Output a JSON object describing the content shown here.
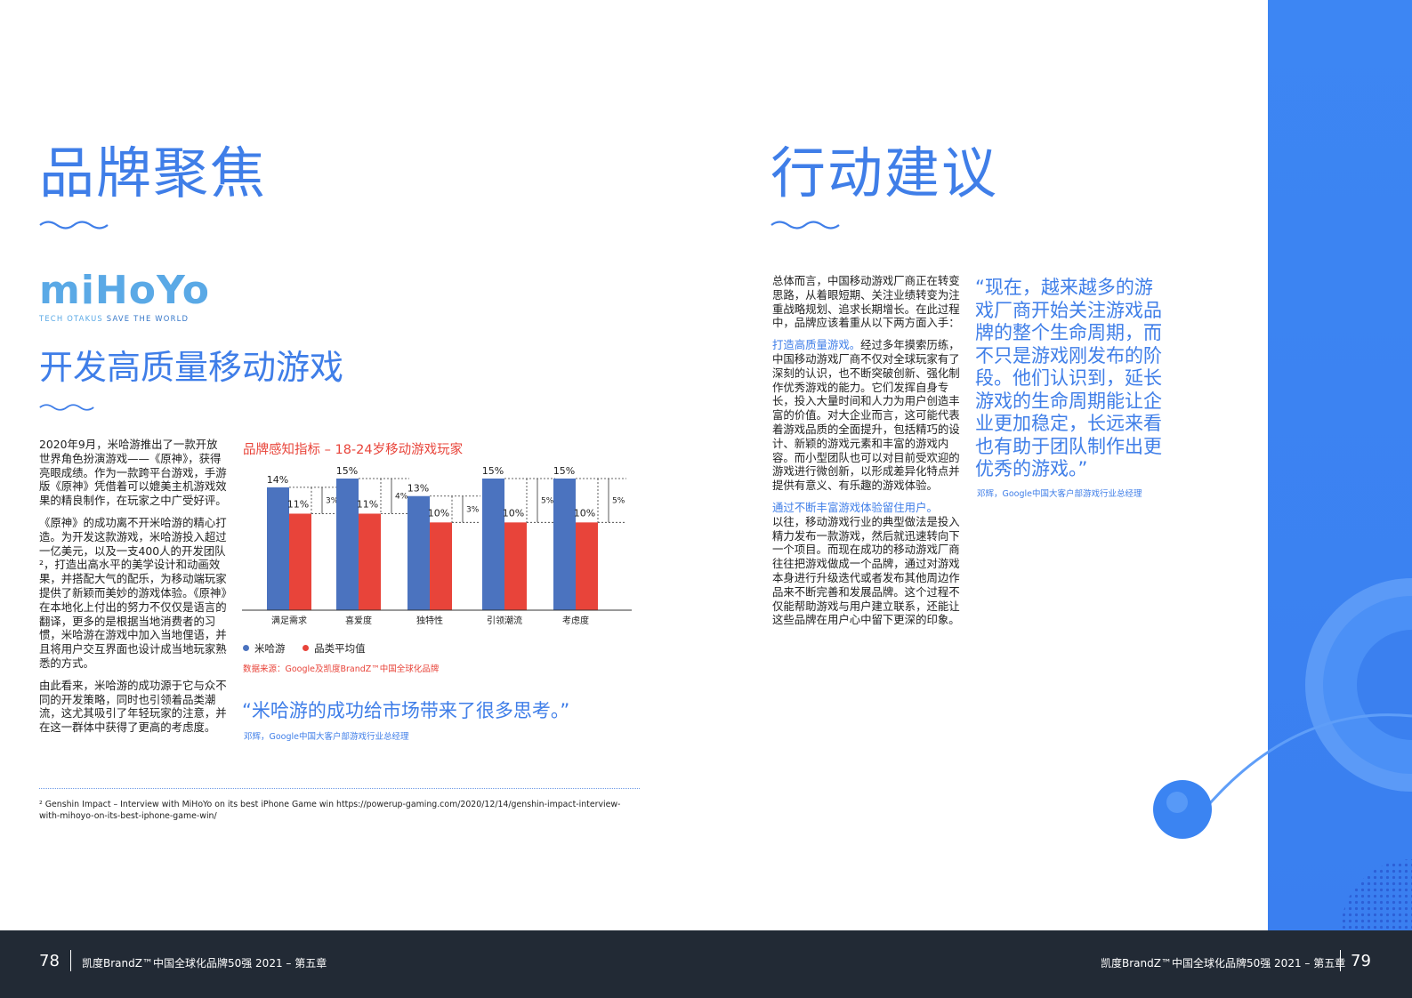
{
  "left": {
    "heading": "品牌聚焦",
    "logo": {
      "wordmark": "miHoYo",
      "tagline_part1": "TECH OTAKUS ",
      "tagline_part2": "SAVE THE WORLD"
    },
    "subheading": "开发高质量移动游戏",
    "paragraphs": [
      "2020年9月，米哈游推出了一款开放世界角色扮演游戏——《原神》，获得亮眼成绩。作为一款跨平台游戏，手游版《原神》凭借着可以媲美主机游戏效果的精良制作，在玩家之中广受好评。",
      "《原神》的成功离不开米哈游的精心打造。为开发这款游戏，米哈游投入超过一亿美元，以及一支400人的开发团队²，打造出高水平的美学设计和动画效果，并搭配大气的配乐，为移动端玩家提供了新颖而美妙的游戏体验。《原神》在本地化上付出的努力不仅仅是语言的翻译，更多的是根据当地消费者的习惯，米哈游在游戏中加入当地俚语，并且将用户交互界面也设计成当地玩家熟悉的方式。",
      "由此看来，米哈游的成功源于它与众不同的开发策略，同时也引领着品类潮流，这尤其吸引了年轻玩家的注意，并在这一群体中获得了更高的考虑度。"
    ],
    "quote": "“米哈游的成功给市场带来了很多思考。”",
    "quote_attribution": "邓辉，Google中国大客户部游戏行业总经理",
    "footnote": "² Genshin Impact – Interview with MiHoYo on its best iPhone Game win https://powerup-gaming.com/2020/12/14/genshin-impact-interview-with-mihoyo-on-its-best-iphone-game-win/"
  },
  "chart_data": {
    "type": "bar",
    "title": "品牌感知指标 – 18-24岁移动游戏玩家",
    "categories": [
      "满足需求",
      "喜爱度",
      "独特性",
      "引领潮流",
      "考虑度"
    ],
    "series": [
      {
        "name": "米哈游",
        "values": [
          14,
          15,
          13,
          15,
          15
        ],
        "labels": [
          "14%",
          "15%",
          "13%",
          "15%",
          "15%"
        ],
        "color": "#4b73bf"
      },
      {
        "name": "品类平均值",
        "values": [
          11,
          11,
          10,
          10,
          10
        ],
        "labels": [
          "11%",
          "11%",
          "10%",
          "10%",
          "10%"
        ],
        "color": "#e8443a"
      }
    ],
    "differences": [
      "3%",
      "4%",
      "3%",
      "5%",
      "5%"
    ],
    "ylim": [
      0,
      15
    ],
    "legend": "bottom-left",
    "grid": false,
    "source": "数据来源：Google及凯度BrandZ™中国全球化品牌"
  },
  "right": {
    "heading": "行动建议",
    "intro": "总体而言，中国移动游戏厂商正在转变思路，从着眼短期、关注业绩转变为注重战略规划、追求长期增长。在此过程中，品牌应该着重从以下两方面入手：",
    "point1_title": "打造高质量游戏。",
    "point1_text": "经过多年摸索历练，中国移动游戏厂商不仅对全球玩家有了深刻的认识，也不断突破创新、强化制作优秀游戏的能力。它们发挥自身专长，投入大量时间和人力为用户创造丰富的价值。对大企业而言，这可能代表着游戏品质的全面提升，包括精巧的设计、新颖的游戏元素和丰富的游戏内容。而小型团队也可以对目前受欢迎的游戏进行微创新，以形成差异化特点并提供有意义、有乐趣的游戏体验。",
    "point2_title": "通过不断丰富游戏体验留住用户。",
    "point2_text": "以往，移动游戏行业的典型做法是投入精力发布一款游戏，然后就迅速转向下一个项目。而现在成功的移动游戏厂商往往把游戏做成一个品牌，通过对游戏本身进行升级迭代或者发布其他周边作品来不断完善和发展品牌。这个过程不仅能帮助游戏与用户建立联系，还能让这些品牌在用户心中留下更深的印象。",
    "quote": "“现在，越来越多的游戏厂商开始关注游戏品牌的整个生命周期，而不只是游戏刚发布的阶段。他们认识到，延长游戏的生命周期能让企业更加稳定，长远来看也有助于团队制作出更优秀的游戏。”",
    "quote_attribution": "邓辉，Google中国大客户部游戏行业总经理"
  },
  "footer": {
    "left_page": "78",
    "left_text": "凯度BrandZ™中国全球化品牌50强 2021 – 第五章",
    "right_text": "凯度BrandZ™中国全球化品牌50强 2021 – 第五章",
    "right_page": "79"
  },
  "colors": {
    "accent_blue": "#3f7ee8",
    "red": "#e8443a",
    "bar_blue": "#4b73bf",
    "footer_bg": "#222a35",
    "side_blue": "#3d86f3"
  }
}
